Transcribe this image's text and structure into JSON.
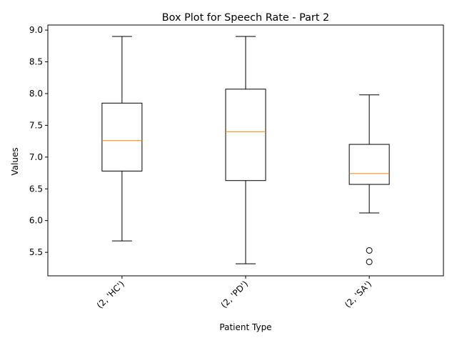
{
  "chart_data": {
    "type": "box",
    "title": "Box Plot for Speech Rate - Part 2",
    "xlabel": "Patient Type",
    "ylabel": "Values",
    "categories": [
      "(2, 'HC')",
      "(2, 'PD')",
      "(2, 'SA')"
    ],
    "ylim": [
      5.13,
      9.08
    ],
    "yticks": [
      5.5,
      6.0,
      6.5,
      7.0,
      7.5,
      8.0,
      8.5,
      9.0
    ],
    "ytick_labels": [
      "5.5",
      "6.0",
      "6.5",
      "7.0",
      "7.5",
      "8.0",
      "8.5",
      "9.0"
    ],
    "boxes": [
      {
        "category": "(2, 'HC')",
        "whisker_low": 5.68,
        "q1": 6.78,
        "median": 7.26,
        "q3": 7.85,
        "whisker_high": 8.9,
        "outliers": []
      },
      {
        "category": "(2, 'PD')",
        "whisker_low": 5.32,
        "q1": 6.63,
        "median": 7.4,
        "q3": 8.07,
        "whisker_high": 8.9,
        "outliers": []
      },
      {
        "category": "(2, 'SA')",
        "whisker_low": 6.12,
        "q1": 6.57,
        "median": 6.74,
        "q3": 7.2,
        "whisker_high": 7.98,
        "outliers": [
          5.53,
          5.35
        ]
      }
    ],
    "colors": {
      "box": "#000000",
      "median": "#ff7f0e",
      "background": "#ffffff"
    },
    "grid": false,
    "x_tick_rotation_deg": 45
  }
}
